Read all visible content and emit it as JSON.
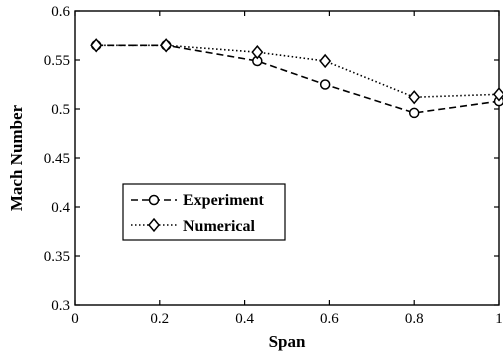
{
  "chart_data": {
    "type": "line",
    "title": "",
    "xlabel": "Span",
    "ylabel": "Mach Number",
    "xlim": [
      0,
      1
    ],
    "ylim": [
      0.3,
      0.6
    ],
    "xticks": [
      0,
      0.2,
      0.4,
      0.6,
      0.8,
      1
    ],
    "xtick_labels": [
      "0",
      "0.2",
      "0.4",
      "0.6",
      "0.8",
      "1"
    ],
    "yticks": [
      0.3,
      0.35,
      0.4,
      0.45,
      0.5,
      0.55,
      0.6
    ],
    "ytick_labels": [
      "0.3",
      "0.35",
      "0.4",
      "0.45",
      "0.5",
      "0.55",
      "0.6"
    ],
    "grid": false,
    "legend_position": "lower-left",
    "series": [
      {
        "name": "Experiment",
        "line_style": "dashed",
        "marker": "circle",
        "color": "#000000",
        "x": [
          0.05,
          0.215,
          0.43,
          0.59,
          0.8,
          1.0
        ],
        "y": [
          0.565,
          0.565,
          0.549,
          0.525,
          0.496,
          0.508
        ]
      },
      {
        "name": "Numerical",
        "line_style": "dotted",
        "marker": "diamond",
        "color": "#000000",
        "x": [
          0.05,
          0.215,
          0.43,
          0.59,
          0.8,
          1.0
        ],
        "y": [
          0.565,
          0.565,
          0.558,
          0.549,
          0.512,
          0.515
        ]
      }
    ]
  }
}
